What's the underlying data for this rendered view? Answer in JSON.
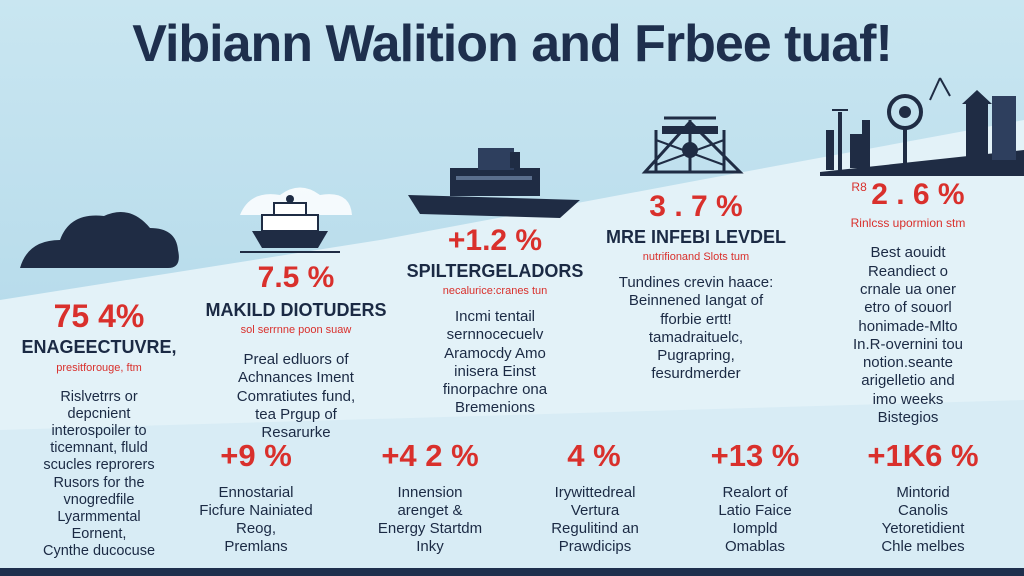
{
  "title": "Vibiann Walition and Frbee tuaf!",
  "colors": {
    "accent": "#d9302c",
    "navy": "#1e2f4d",
    "sky": "#bfe0ee"
  },
  "col1": {
    "pct": "75 4%",
    "head": "ENAGEECTUVRE,",
    "sub": "presitforouge, ftm",
    "body": "Rislvetrrs or\ndepcnient\ninterospoiler to\nticemnant, fluld\nscucles reprorers\nRusors for the\nvnogredfile\nLyarmmental\nEornent,\nCynthe ducocuse"
  },
  "col2": {
    "pct": "7.5 %",
    "head": "MAKILD DIOTUDERS",
    "sub": "sol serrnne poon suaw",
    "body": "Preal edluors of\nAchnances Iment\nComratiutes fund,\ntea Prgup of\nResarurke"
  },
  "col3": {
    "pct": "+1.2 %",
    "head": "SPILTERGELADORS",
    "sub": "necalurice:cranes tun",
    "body": "Incmi tentail\nsernnocecuelv\nAramocdy Amo\ninisera Einst\nfinorpachre ona\nBremenions"
  },
  "col4": {
    "pct": "3 . 7 %",
    "head": "MRE INFEBI LEVDEL",
    "sub": "nutrifionand Slots tum",
    "body": "Tundines crevin haace:\nBeinnened Iangat of\nfforbie ertt!\ntamadraituelc,\nPugrapring,\nfesurdmerder"
  },
  "col5": {
    "pct": "2 . 6 %",
    "tag": "R8",
    "sub": "Rinlcss upormion stm",
    "body": "Best aouidt\nReandiect o\ncrnale ua oner\netro of souorl\nhonimade-Mlto\nIn.R-overnini tou\nnotion.seante\narigelletio and\nimo weeks\nBistegios"
  },
  "bottom": [
    {
      "pct": "+9 %",
      "text": "Ennostarial\nFicfure Nainiated\nReog,\nPremlans"
    },
    {
      "pct": "+4 2 %",
      "text": "Innension\narenget &\nEnergy Startdm\nInky"
    },
    {
      "pct": "4 %",
      "text": "Irywittedreal\nVertura\nRegulitind an\nPrawdicips"
    },
    {
      "pct": "+13 %",
      "text": "Realort of\nLatio Faice\nIompld\nOmablas"
    },
    {
      "pct": "+1K6 %",
      "text": "Mintorid\nCanolis\nYetoretidient\nChle melbes"
    }
  ]
}
